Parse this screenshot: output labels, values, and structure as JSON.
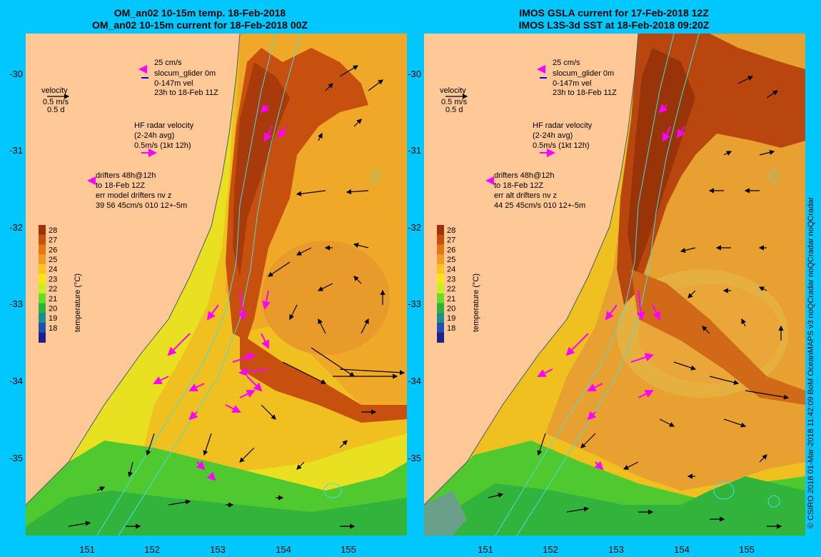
{
  "colors": {
    "background": "#00c8ff",
    "land": "#ffc896",
    "magenta": "#ff00ff",
    "cyan_contour": "#40e0e0"
  },
  "panels": [
    {
      "title_line1": "OM_an02 10-15m temp. 18-Feb-2018",
      "title_line2": "OM_an02 10-15m current for 18-Feb-2018 00Z",
      "velocity_label": "velocity",
      "velocity_value": "0.5 m/s",
      "velocity_time": "0.5 d",
      "glider_speed": "25 cm/s",
      "glider_name": "slocum_glider 0m",
      "glider_depth": "0-147m vel",
      "glider_time": "23h to 18-Feb 11Z",
      "hf_title": "HF radar velocity",
      "hf_avg": "(2-24h avg)",
      "hf_scale": "0.5m/s (1kt 12h)",
      "drifters_line1": "drifters 48h@12h",
      "drifters_line2": "to 18-Feb 12Z",
      "drifters_line3": "err model drifters nv z",
      "drifters_line4": "39 56 45cm/s 010 12+-5m"
    },
    {
      "title_line1": "IMOS GSLA current for 17-Feb-2018 12Z",
      "title_line2": "IMOS L3S-3d SST at 18-Feb-2018 09:20Z",
      "velocity_label": "velocity",
      "velocity_value": "0.5 m/s",
      "velocity_time": "0.5 d",
      "glider_speed": "25 cm/s",
      "glider_name": "slocum_glider 0m",
      "glider_depth": "0-147m vel",
      "glider_time": "23h to 18-Feb 11Z",
      "hf_title": "HF radar velocity",
      "hf_avg": "(2-24h avg)",
      "hf_scale": "0.5m/s (1kt 12h)",
      "drifters_line1": "drifters 48h@12h",
      "drifters_line2": "to 18-Feb 12Z",
      "drifters_line3": "err alt drifters nv z",
      "drifters_line4": "44 25 45cm/s 010 12+-5m"
    }
  ],
  "colorbar": {
    "label": "temperature (°C)",
    "ticks": [
      "28",
      "27",
      "26",
      "25",
      "24",
      "23",
      "22",
      "21",
      "20",
      "19",
      "18"
    ],
    "colors": [
      "#a0300a",
      "#c8500f",
      "#e07814",
      "#f09a28",
      "#ffc31e",
      "#f5e614",
      "#c8f01e",
      "#64dc28",
      "#28b43c",
      "#1e8c8c",
      "#1e50b4",
      "#1e1e8c"
    ]
  },
  "y_ticks": [
    "-30",
    "-31",
    "-32",
    "-33",
    "-34",
    "-35"
  ],
  "x_ticks": [
    "151",
    "152",
    "153",
    "154",
    "155"
  ],
  "credit": "© CSIRO 2018   01-Mar-2018 11:42:09 BoM OceanMAPS v3 noQCradar noQCradar noQCradar"
}
